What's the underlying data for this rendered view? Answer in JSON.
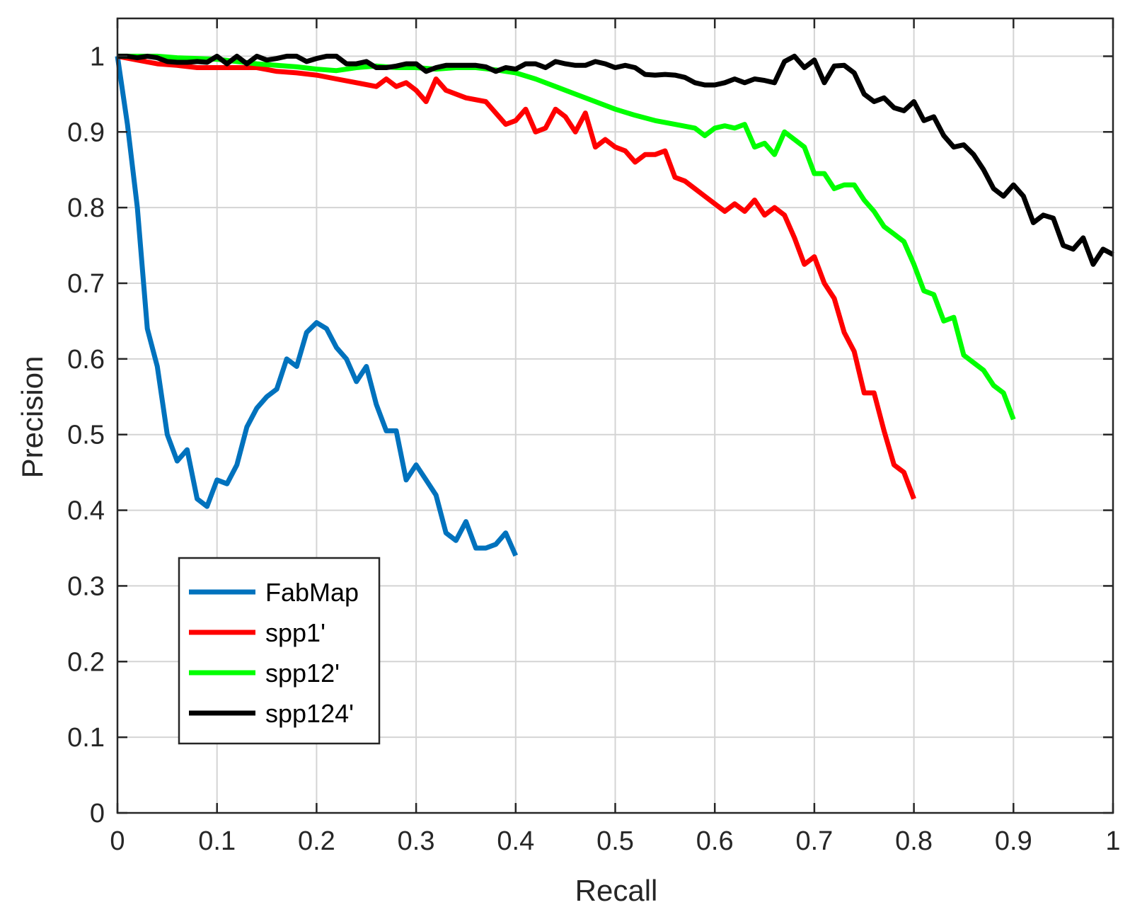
{
  "chart_data": {
    "type": "line",
    "xlabel": "Recall",
    "ylabel": "Precision",
    "xlim": [
      0,
      1
    ],
    "ylim": [
      0,
      1.05
    ],
    "xticks": [
      "0",
      "0.1",
      "0.2",
      "0.3",
      "0.4",
      "0.5",
      "0.6",
      "0.7",
      "0.8",
      "0.9",
      "1"
    ],
    "yticks": [
      "0",
      "0.1",
      "0.2",
      "0.3",
      "0.4",
      "0.5",
      "0.6",
      "0.7",
      "0.8",
      "0.9",
      "1"
    ],
    "grid": true,
    "legend_position": "lower-left",
    "series": [
      {
        "name": "FabMap",
        "color": "#0072BD",
        "x": [
          0,
          0.01,
          0.02,
          0.03,
          0.04,
          0.05,
          0.06,
          0.07,
          0.08,
          0.09,
          0.1,
          0.11,
          0.12,
          0.13,
          0.14,
          0.15,
          0.16,
          0.17,
          0.18,
          0.19,
          0.2,
          0.21,
          0.22,
          0.23,
          0.24,
          0.25,
          0.26,
          0.27,
          0.28,
          0.29,
          0.3,
          0.31,
          0.32,
          0.33,
          0.34,
          0.35,
          0.36,
          0.37,
          0.38,
          0.39,
          0.4
        ],
        "y": [
          1.0,
          0.91,
          0.8,
          0.64,
          0.59,
          0.5,
          0.465,
          0.48,
          0.415,
          0.405,
          0.44,
          0.435,
          0.46,
          0.51,
          0.535,
          0.55,
          0.56,
          0.6,
          0.59,
          0.635,
          0.648,
          0.64,
          0.615,
          0.6,
          0.57,
          0.59,
          0.54,
          0.505,
          0.505,
          0.44,
          0.46,
          0.44,
          0.42,
          0.37,
          0.36,
          0.385,
          0.35,
          0.35,
          0.355,
          0.37,
          0.34
        ]
      },
      {
        "name": "spp1'",
        "color": "#FF0000",
        "x": [
          0,
          0.02,
          0.04,
          0.06,
          0.08,
          0.1,
          0.12,
          0.14,
          0.16,
          0.18,
          0.2,
          0.22,
          0.24,
          0.26,
          0.27,
          0.28,
          0.29,
          0.3,
          0.31,
          0.32,
          0.33,
          0.35,
          0.37,
          0.39,
          0.4,
          0.41,
          0.42,
          0.43,
          0.44,
          0.45,
          0.46,
          0.47,
          0.48,
          0.49,
          0.5,
          0.51,
          0.52,
          0.53,
          0.54,
          0.55,
          0.56,
          0.57,
          0.58,
          0.59,
          0.6,
          0.61,
          0.62,
          0.63,
          0.64,
          0.65,
          0.66,
          0.67,
          0.68,
          0.69,
          0.7,
          0.71,
          0.72,
          0.73,
          0.74,
          0.75,
          0.76,
          0.77,
          0.78,
          0.79,
          0.8
        ],
        "y": [
          1.0,
          0.995,
          0.99,
          0.988,
          0.985,
          0.985,
          0.985,
          0.985,
          0.98,
          0.978,
          0.975,
          0.97,
          0.965,
          0.96,
          0.97,
          0.96,
          0.965,
          0.955,
          0.94,
          0.97,
          0.955,
          0.945,
          0.94,
          0.91,
          0.915,
          0.93,
          0.9,
          0.905,
          0.93,
          0.92,
          0.9,
          0.925,
          0.88,
          0.89,
          0.88,
          0.875,
          0.86,
          0.87,
          0.87,
          0.875,
          0.84,
          0.835,
          0.825,
          0.815,
          0.805,
          0.795,
          0.805,
          0.795,
          0.81,
          0.79,
          0.8,
          0.79,
          0.76,
          0.725,
          0.735,
          0.7,
          0.68,
          0.635,
          0.61,
          0.555,
          0.555,
          0.505,
          0.46,
          0.45,
          0.415
        ]
      },
      {
        "name": "spp12'",
        "color": "#00FF00",
        "x": [
          0,
          0.02,
          0.04,
          0.06,
          0.08,
          0.1,
          0.12,
          0.14,
          0.16,
          0.18,
          0.2,
          0.22,
          0.24,
          0.26,
          0.28,
          0.3,
          0.32,
          0.34,
          0.36,
          0.38,
          0.4,
          0.42,
          0.44,
          0.46,
          0.48,
          0.5,
          0.52,
          0.54,
          0.56,
          0.58,
          0.59,
          0.6,
          0.61,
          0.62,
          0.63,
          0.64,
          0.65,
          0.66,
          0.67,
          0.68,
          0.69,
          0.7,
          0.71,
          0.72,
          0.73,
          0.74,
          0.75,
          0.76,
          0.77,
          0.78,
          0.79,
          0.8,
          0.81,
          0.82,
          0.83,
          0.84,
          0.85,
          0.86,
          0.87,
          0.88,
          0.89,
          0.9
        ],
        "y": [
          1.0,
          1.0,
          1.0,
          0.998,
          0.997,
          0.996,
          0.993,
          0.99,
          0.988,
          0.986,
          0.983,
          0.981,
          0.985,
          0.987,
          0.985,
          0.985,
          0.983,
          0.985,
          0.985,
          0.982,
          0.978,
          0.97,
          0.96,
          0.95,
          0.94,
          0.93,
          0.922,
          0.915,
          0.91,
          0.905,
          0.895,
          0.905,
          0.908,
          0.905,
          0.91,
          0.88,
          0.885,
          0.87,
          0.9,
          0.89,
          0.88,
          0.845,
          0.845,
          0.825,
          0.83,
          0.83,
          0.81,
          0.795,
          0.775,
          0.765,
          0.755,
          0.725,
          0.69,
          0.685,
          0.65,
          0.655,
          0.605,
          0.595,
          0.585,
          0.565,
          0.555,
          0.52
        ]
      },
      {
        "name": "spp124'",
        "color": "#000000",
        "x": [
          0,
          0.01,
          0.02,
          0.03,
          0.04,
          0.05,
          0.06,
          0.07,
          0.08,
          0.09,
          0.1,
          0.11,
          0.12,
          0.13,
          0.14,
          0.15,
          0.16,
          0.17,
          0.18,
          0.19,
          0.2,
          0.21,
          0.22,
          0.23,
          0.24,
          0.25,
          0.26,
          0.27,
          0.28,
          0.29,
          0.3,
          0.31,
          0.32,
          0.33,
          0.34,
          0.35,
          0.36,
          0.37,
          0.38,
          0.39,
          0.4,
          0.41,
          0.42,
          0.43,
          0.44,
          0.45,
          0.46,
          0.47,
          0.48,
          0.49,
          0.5,
          0.51,
          0.52,
          0.53,
          0.54,
          0.55,
          0.56,
          0.57,
          0.58,
          0.59,
          0.6,
          0.61,
          0.62,
          0.63,
          0.64,
          0.65,
          0.66,
          0.67,
          0.68,
          0.69,
          0.7,
          0.71,
          0.72,
          0.73,
          0.74,
          0.75,
          0.76,
          0.77,
          0.78,
          0.79,
          0.8,
          0.81,
          0.82,
          0.83,
          0.84,
          0.85,
          0.86,
          0.87,
          0.88,
          0.89,
          0.9,
          0.91,
          0.92,
          0.93,
          0.94,
          0.95,
          0.96,
          0.97,
          0.98,
          0.99,
          1.0
        ],
        "y": [
          1.0,
          1.0,
          0.998,
          1.0,
          0.998,
          0.993,
          0.992,
          0.992,
          0.993,
          0.992,
          1.0,
          0.99,
          1.0,
          0.99,
          1.0,
          0.995,
          0.997,
          1.0,
          1.0,
          0.993,
          0.997,
          1.0,
          1.0,
          0.99,
          0.99,
          0.993,
          0.985,
          0.985,
          0.987,
          0.99,
          0.99,
          0.98,
          0.985,
          0.988,
          0.988,
          0.988,
          0.988,
          0.986,
          0.98,
          0.985,
          0.983,
          0.99,
          0.99,
          0.985,
          0.993,
          0.99,
          0.988,
          0.988,
          0.993,
          0.99,
          0.985,
          0.988,
          0.985,
          0.976,
          0.975,
          0.976,
          0.975,
          0.972,
          0.965,
          0.962,
          0.962,
          0.965,
          0.97,
          0.965,
          0.97,
          0.968,
          0.965,
          0.993,
          1.0,
          0.985,
          0.995,
          0.965,
          0.987,
          0.988,
          0.978,
          0.95,
          0.94,
          0.945,
          0.932,
          0.928,
          0.94,
          0.915,
          0.92,
          0.895,
          0.88,
          0.883,
          0.87,
          0.85,
          0.825,
          0.815,
          0.83,
          0.815,
          0.78,
          0.79,
          0.786,
          0.75,
          0.745,
          0.76,
          0.725,
          0.745,
          0.738
        ]
      }
    ]
  }
}
